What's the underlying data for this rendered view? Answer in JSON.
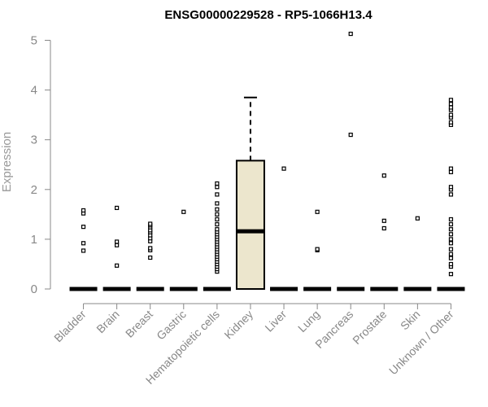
{
  "chart_data": {
    "type": "box",
    "title": "ENSG00000229528 - RP5-1066H13.4",
    "xlabel": "",
    "ylabel": "Expression",
    "ylim": [
      0,
      5.2
    ],
    "yticks": [
      0,
      1,
      2,
      3,
      4,
      5
    ],
    "box_fill_color": "#ece6cd",
    "categories": [
      "Bladder",
      "Brain",
      "Breast",
      "Gastric",
      "Hematopoietic cells",
      "Kidney",
      "Liver",
      "Lung",
      "Pancreas",
      "Prostate",
      "Skin",
      "Unknown / Other"
    ],
    "boxes": [
      {
        "category": "Bladder",
        "min": 0,
        "q1": 0,
        "median": 0,
        "q3": 0,
        "max": 0,
        "outliers": [
          0.77,
          0.92,
          1.25,
          1.52,
          1.58
        ]
      },
      {
        "category": "Brain",
        "min": 0,
        "q1": 0,
        "median": 0,
        "q3": 0,
        "max": 0,
        "outliers": [
          0.47,
          0.88,
          0.95,
          1.63
        ]
      },
      {
        "category": "Breast",
        "min": 0,
        "q1": 0,
        "median": 0,
        "q3": 0,
        "max": 0,
        "outliers": [
          0.63,
          0.78,
          0.82,
          0.96,
          1.02,
          1.08,
          1.14,
          1.18,
          1.24,
          1.28,
          1.31
        ]
      },
      {
        "category": "Gastric",
        "min": 0,
        "q1": 0,
        "median": 0,
        "q3": 0,
        "max": 0,
        "outliers": [
          1.55
        ]
      },
      {
        "category": "Hematopoietic cells",
        "min": 0,
        "q1": 0,
        "median": 0,
        "q3": 0,
        "max": 0,
        "outliers": [
          0.35,
          0.4,
          0.45,
          0.5,
          0.55,
          0.6,
          0.65,
          0.7,
          0.75,
          0.8,
          0.85,
          0.9,
          0.95,
          1.0,
          1.05,
          1.1,
          1.15,
          1.2,
          1.3,
          1.4,
          1.5,
          1.6,
          1.72,
          1.9,
          2.05,
          2.12
        ]
      },
      {
        "category": "Kidney",
        "min": 0,
        "q1": 0,
        "median": 1.16,
        "q3": 2.58,
        "max": 3.85,
        "outliers": []
      },
      {
        "category": "Liver",
        "min": 0,
        "q1": 0,
        "median": 0,
        "q3": 0,
        "max": 0,
        "outliers": [
          2.42
        ]
      },
      {
        "category": "Lung",
        "min": 0,
        "q1": 0,
        "median": 0,
        "q3": 0,
        "max": 0,
        "outliers": [
          0.78,
          0.8,
          1.55
        ]
      },
      {
        "category": "Pancreas",
        "min": 0,
        "q1": 0,
        "median": 0,
        "q3": 0,
        "max": 0,
        "outliers": [
          3.1,
          5.13
        ]
      },
      {
        "category": "Prostate",
        "min": 0,
        "q1": 0,
        "median": 0,
        "q3": 0,
        "max": 0,
        "outliers": [
          1.22,
          1.37,
          2.28
        ]
      },
      {
        "category": "Skin",
        "min": 0,
        "q1": 0,
        "median": 0,
        "q3": 0,
        "max": 0,
        "outliers": [
          1.42
        ]
      },
      {
        "category": "Unknown / Other",
        "min": 0,
        "q1": 0,
        "median": 0,
        "q3": 0,
        "max": 0,
        "outliers": [
          0.3,
          0.45,
          0.5,
          0.62,
          0.7,
          0.8,
          0.92,
          1.0,
          1.1,
          1.2,
          1.3,
          1.4,
          1.9,
          2.0,
          2.05,
          2.35,
          2.42,
          3.3,
          3.35,
          3.45,
          3.5,
          3.6,
          3.65,
          3.72,
          3.8
        ]
      }
    ]
  }
}
